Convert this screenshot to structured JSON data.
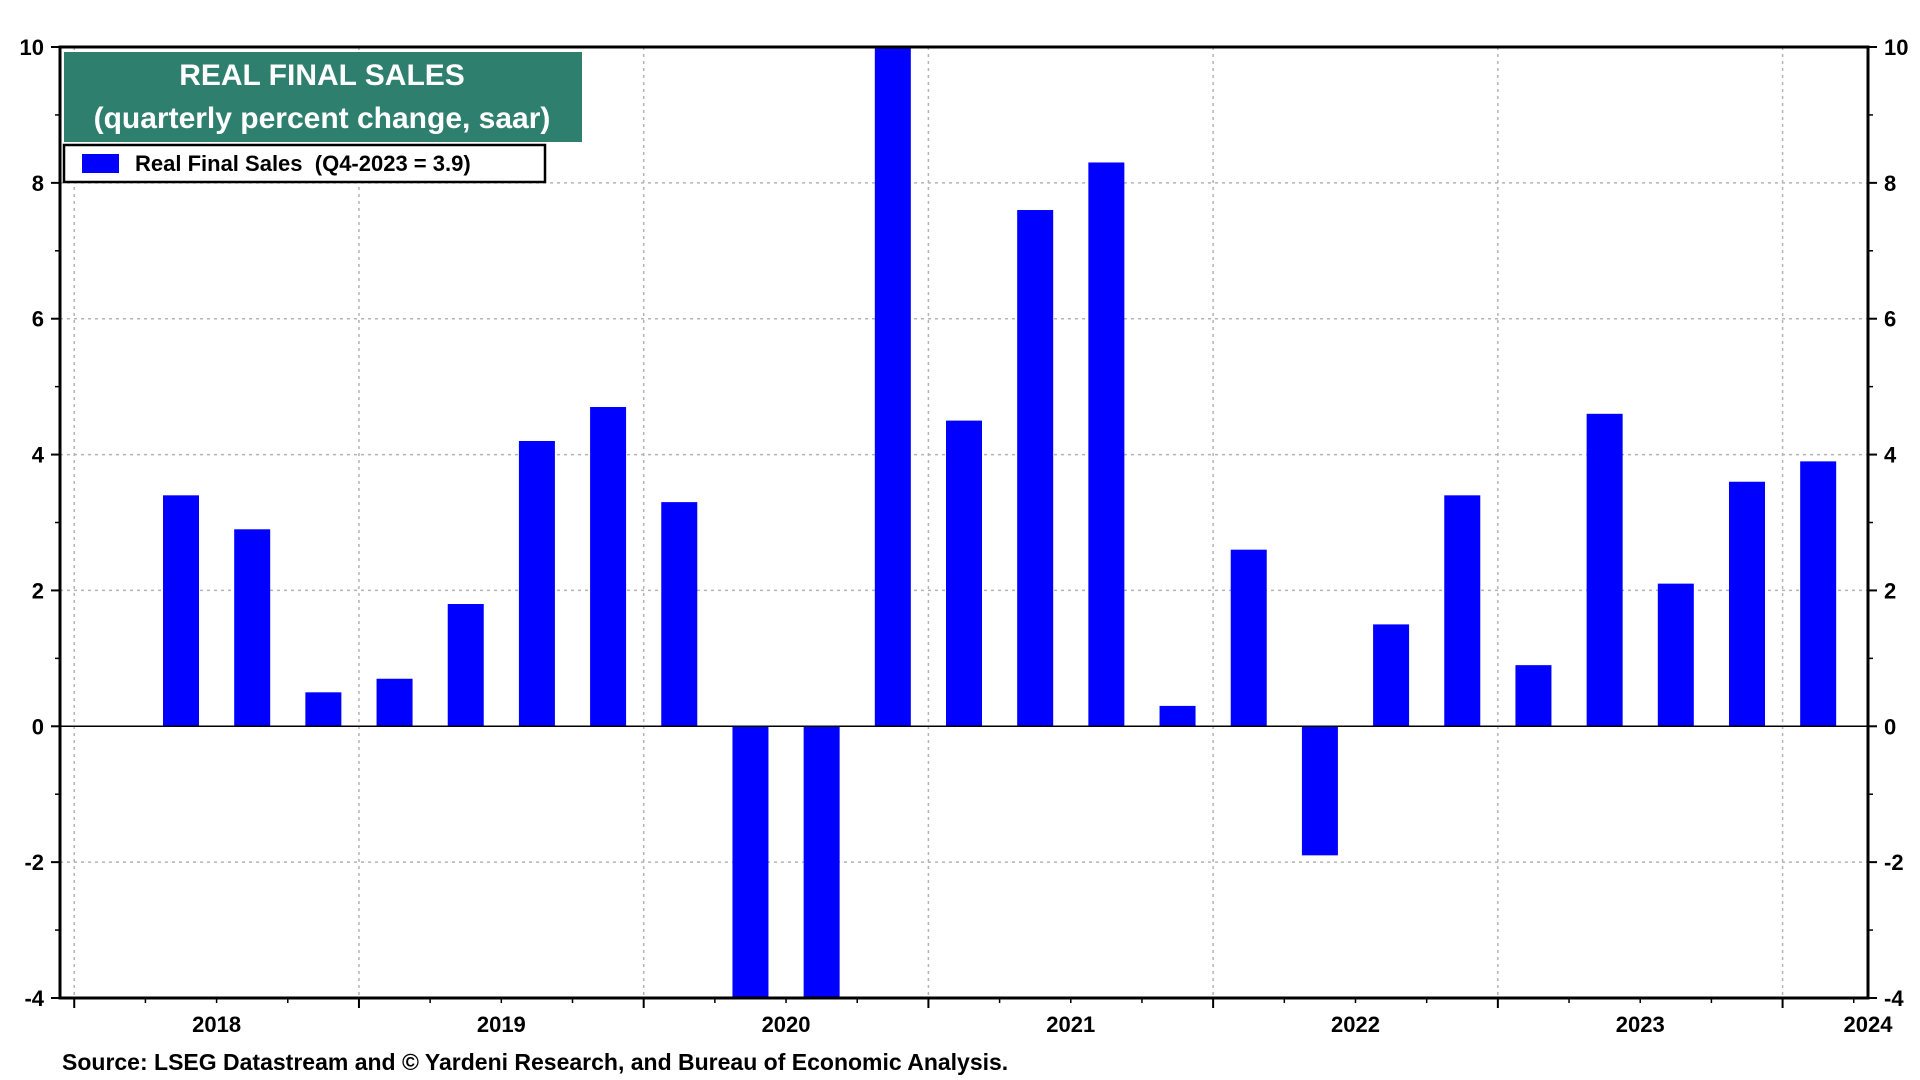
{
  "chart_data": {
    "type": "bar",
    "title": "REAL FINAL SALES",
    "subtitle": "(quarterly percent change, saar)",
    "legend": {
      "label": "Real Final Sales  (Q4-2023 = 3.9)",
      "placement": "top-left"
    },
    "source": "Source: LSEG Datastream and © Yardeni Research, and Bureau of Economic Analysis.",
    "series": [
      {
        "name": "Real Final Sales",
        "color": "#0000ff",
        "values": [
          3.4,
          2.9,
          0.5,
          0.7,
          1.8,
          4.2,
          4.7,
          3.3,
          -4.0,
          -4.0,
          10.0,
          4.5,
          7.6,
          8.3,
          0.3,
          2.6,
          -1.9,
          1.5,
          3.4,
          0.9,
          4.6,
          2.1,
          3.6,
          3.9
        ]
      }
    ],
    "bar_positions": [
      0.375,
      0.625,
      0.875,
      1.125,
      1.375,
      1.625,
      1.875,
      2.125,
      2.375,
      2.625,
      2.875,
      3.125,
      3.375,
      3.625,
      3.875,
      4.125,
      4.375,
      4.625,
      4.875,
      5.125,
      5.375,
      5.625,
      5.875,
      6.125
    ],
    "x_ticks": [
      {
        "label": "2018",
        "pos": 0.5
      },
      {
        "label": "2019",
        "pos": 1.5
      },
      {
        "label": "2020",
        "pos": 2.5
      },
      {
        "label": "2021",
        "pos": 3.5
      },
      {
        "label": "2022",
        "pos": 4.5
      },
      {
        "label": "2023",
        "pos": 5.5
      },
      {
        "label": "2024",
        "pos": 6.3
      }
    ],
    "year_boundaries": [
      0,
      1,
      2,
      3,
      4,
      5,
      6
    ],
    "xlim": [
      -0.05,
      6.3
    ],
    "ylim": [
      -4,
      10
    ],
    "y_ticks": [
      10,
      8,
      6,
      4,
      2,
      0,
      -2,
      -4
    ],
    "y_tick_labels": [
      "10",
      "8",
      "6",
      "4",
      "2",
      "0",
      "-2",
      "-4"
    ],
    "grid": true,
    "colors": {
      "bar": "#0000ff",
      "title_bg": "#2f7f6e",
      "grid": "#b4b4b4"
    }
  }
}
